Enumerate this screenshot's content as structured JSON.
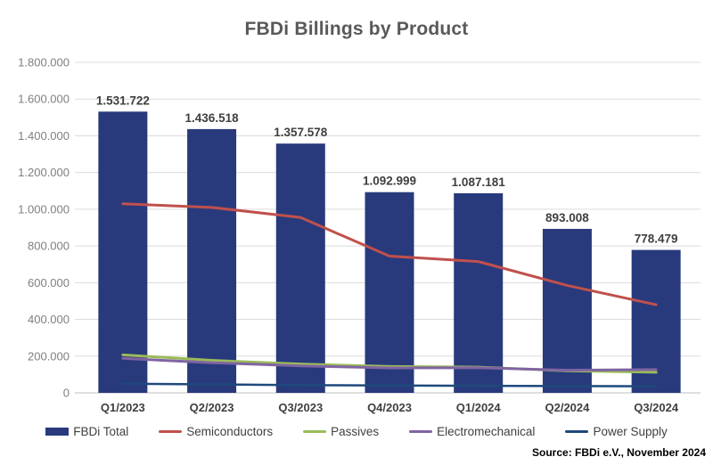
{
  "chart_data": {
    "type": "combo",
    "title": "FBDi Billings by Product",
    "source": "Source: FBDi e.V., November 2024",
    "categories": [
      "Q1/2023",
      "Q2/2023",
      "Q3/2023",
      "Q4/2023",
      "Q1/2024",
      "Q2/2024",
      "Q3/2024"
    ],
    "bar_series": {
      "name": "FBDi Total",
      "color": "#283a7c",
      "values": [
        1531722,
        1436518,
        1357578,
        1092999,
        1087181,
        893008,
        778479
      ],
      "labels": [
        "1.531.722",
        "1.436.518",
        "1.357.578",
        "1.092.999",
        "1.087.181",
        "893.008",
        "778.479"
      ]
    },
    "line_series": [
      {
        "name": "Semiconductors",
        "color": "#c0504d",
        "width": 3,
        "values": [
          1030000,
          1010000,
          955000,
          745000,
          715000,
          585000,
          480000
        ]
      },
      {
        "name": "Passives",
        "color": "#9bbb59",
        "width": 3,
        "values": [
          207000,
          177000,
          157000,
          144000,
          140000,
          120000,
          112000
        ]
      },
      {
        "name": "Electromechanical",
        "color": "#8064a2",
        "width": 3,
        "values": [
          188000,
          164000,
          147000,
          136000,
          137000,
          123000,
          127000
        ]
      },
      {
        "name": "Power Supply",
        "color": "#1f497d",
        "width": 2.5,
        "values": [
          50000,
          46000,
          42000,
          40000,
          38000,
          37000,
          36000
        ]
      }
    ],
    "y_axis": {
      "min": 0,
      "max": 1800000,
      "step": 200000,
      "tick_labels": [
        "0",
        "200.000",
        "400.000",
        "600.000",
        "800.000",
        "1.000.000",
        "1.200.000",
        "1.400.000",
        "1.600.000",
        "1.800.000"
      ]
    },
    "grid": true,
    "legend_position": "bottom",
    "colors": {
      "gridline": "#dcdcdc",
      "axis_line": "#bfbfbf",
      "tick_text": "#7f7f7f",
      "label_text": "#3f3f3f",
      "title_text": "#595959"
    }
  }
}
